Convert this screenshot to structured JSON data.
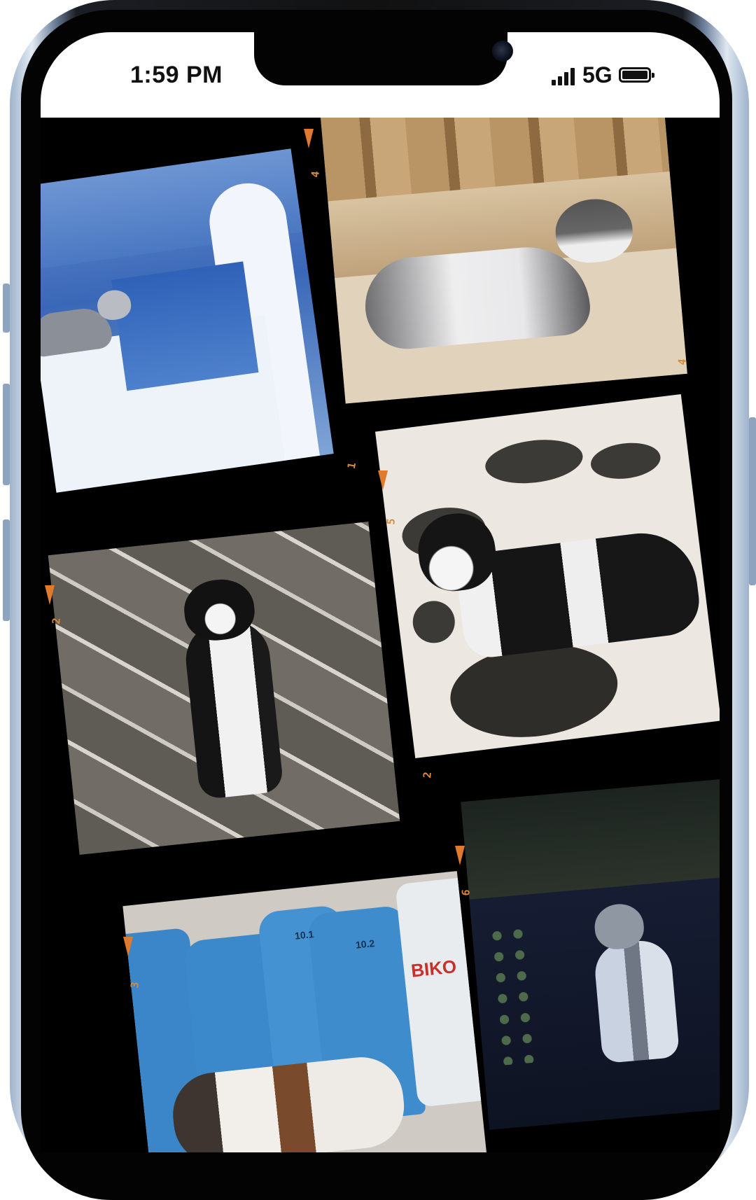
{
  "status_bar": {
    "time": "1:59 PM",
    "network": "5G",
    "signal_icon": "cellular-signal-icon",
    "battery_icon": "battery-full-icon"
  },
  "gallery": {
    "frames": [
      {
        "subject": "cat-on-white-wall-over-sea",
        "number": "1"
      },
      {
        "subject": "cat-lying-by-ancient-columns",
        "number": "4"
      },
      {
        "subject": "black-white-cat-on-stone-pavement",
        "number": "2"
      },
      {
        "subject": "black-white-cat-on-painted-pebbles",
        "number": "5"
      },
      {
        "subject": "calico-cat-by-blue-gas-cylinders",
        "number": "3"
      },
      {
        "subject": "tabby-cat-at-night",
        "number": "6"
      }
    ],
    "edge_numbers": [
      "4",
      "1",
      "4",
      "5",
      "2",
      "2",
      "6",
      "3"
    ],
    "cylinder_text": [
      "10.1",
      "10.2",
      "BIKO"
    ]
  },
  "colors": {
    "film_marker": "#e07a2c",
    "frame_number": "#d68a3e"
  }
}
